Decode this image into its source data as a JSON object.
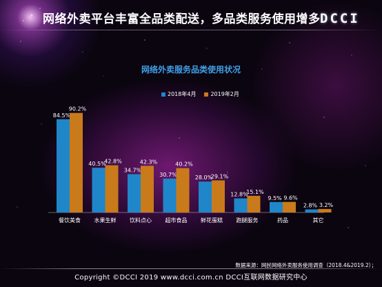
{
  "header": {
    "title": "网络外卖平台丰富全品类配送，多品类服务使用增多",
    "logo": "DCCI"
  },
  "colors": {
    "series_2018": "#1f86c9",
    "series_2019": "#c97a1a",
    "title": "#3fa0e8"
  },
  "chart_data": {
    "type": "bar",
    "title": "网络外卖服务品类使用状况",
    "categories": [
      "餐饮美食",
      "水果生鲜",
      "饮料点心",
      "超市食品",
      "鲜花蛋糕",
      "跑腿服务",
      "药品",
      "其它"
    ],
    "series": [
      {
        "name": "2018年4月",
        "values": [
          84.5,
          40.5,
          34.7,
          30.7,
          28.0,
          12.8,
          9.5,
          2.8
        ],
        "labels": [
          "84.5%",
          "40.5%",
          "34.7%",
          "30.7%",
          "28.0%",
          "12.8%",
          "9.5%",
          "2.8%"
        ]
      },
      {
        "name": "2019年2月",
        "values": [
          90.2,
          42.8,
          42.3,
          40.2,
          29.1,
          15.1,
          9.6,
          3.2
        ],
        "labels": [
          "90.2%",
          "42.8%",
          "42.3%",
          "40.2%",
          "29.1%",
          "15.1%",
          "9.6%",
          "3.2%"
        ]
      }
    ],
    "ylim": [
      0,
      100
    ],
    "legend": "top-center",
    "grid": false
  },
  "source": "数据来源：网民网络外卖服务使用调查（2018.4&2019.2）；",
  "footer": "Copyright ©DCCI 2019  www.dcci.com.cn  DCCI互联网数据研究中心"
}
